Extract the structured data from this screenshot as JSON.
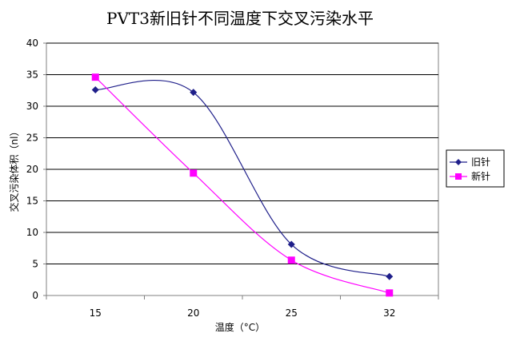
{
  "chart_data": {
    "type": "line",
    "title": "PVT3新旧针不同温度下交叉污染水平",
    "xlabel": "温度（°C）",
    "ylabel": "交叉污染体积（nl）",
    "categories": [
      "15",
      "20",
      "25",
      "32"
    ],
    "ylim": [
      0,
      40
    ],
    "yticks": [
      0,
      5,
      10,
      15,
      20,
      25,
      30,
      35,
      40
    ],
    "grid": "horizontal",
    "smooth": true,
    "legend_position": "right",
    "series": [
      {
        "name": "旧针",
        "values": [
          32.6,
          32.2,
          8.1,
          3.0
        ],
        "color": "#1f1f8a",
        "marker": "diamond"
      },
      {
        "name": "新针",
        "values": [
          34.6,
          19.4,
          5.6,
          0.4
        ],
        "color": "#ff00ff",
        "marker": "square"
      }
    ]
  }
}
